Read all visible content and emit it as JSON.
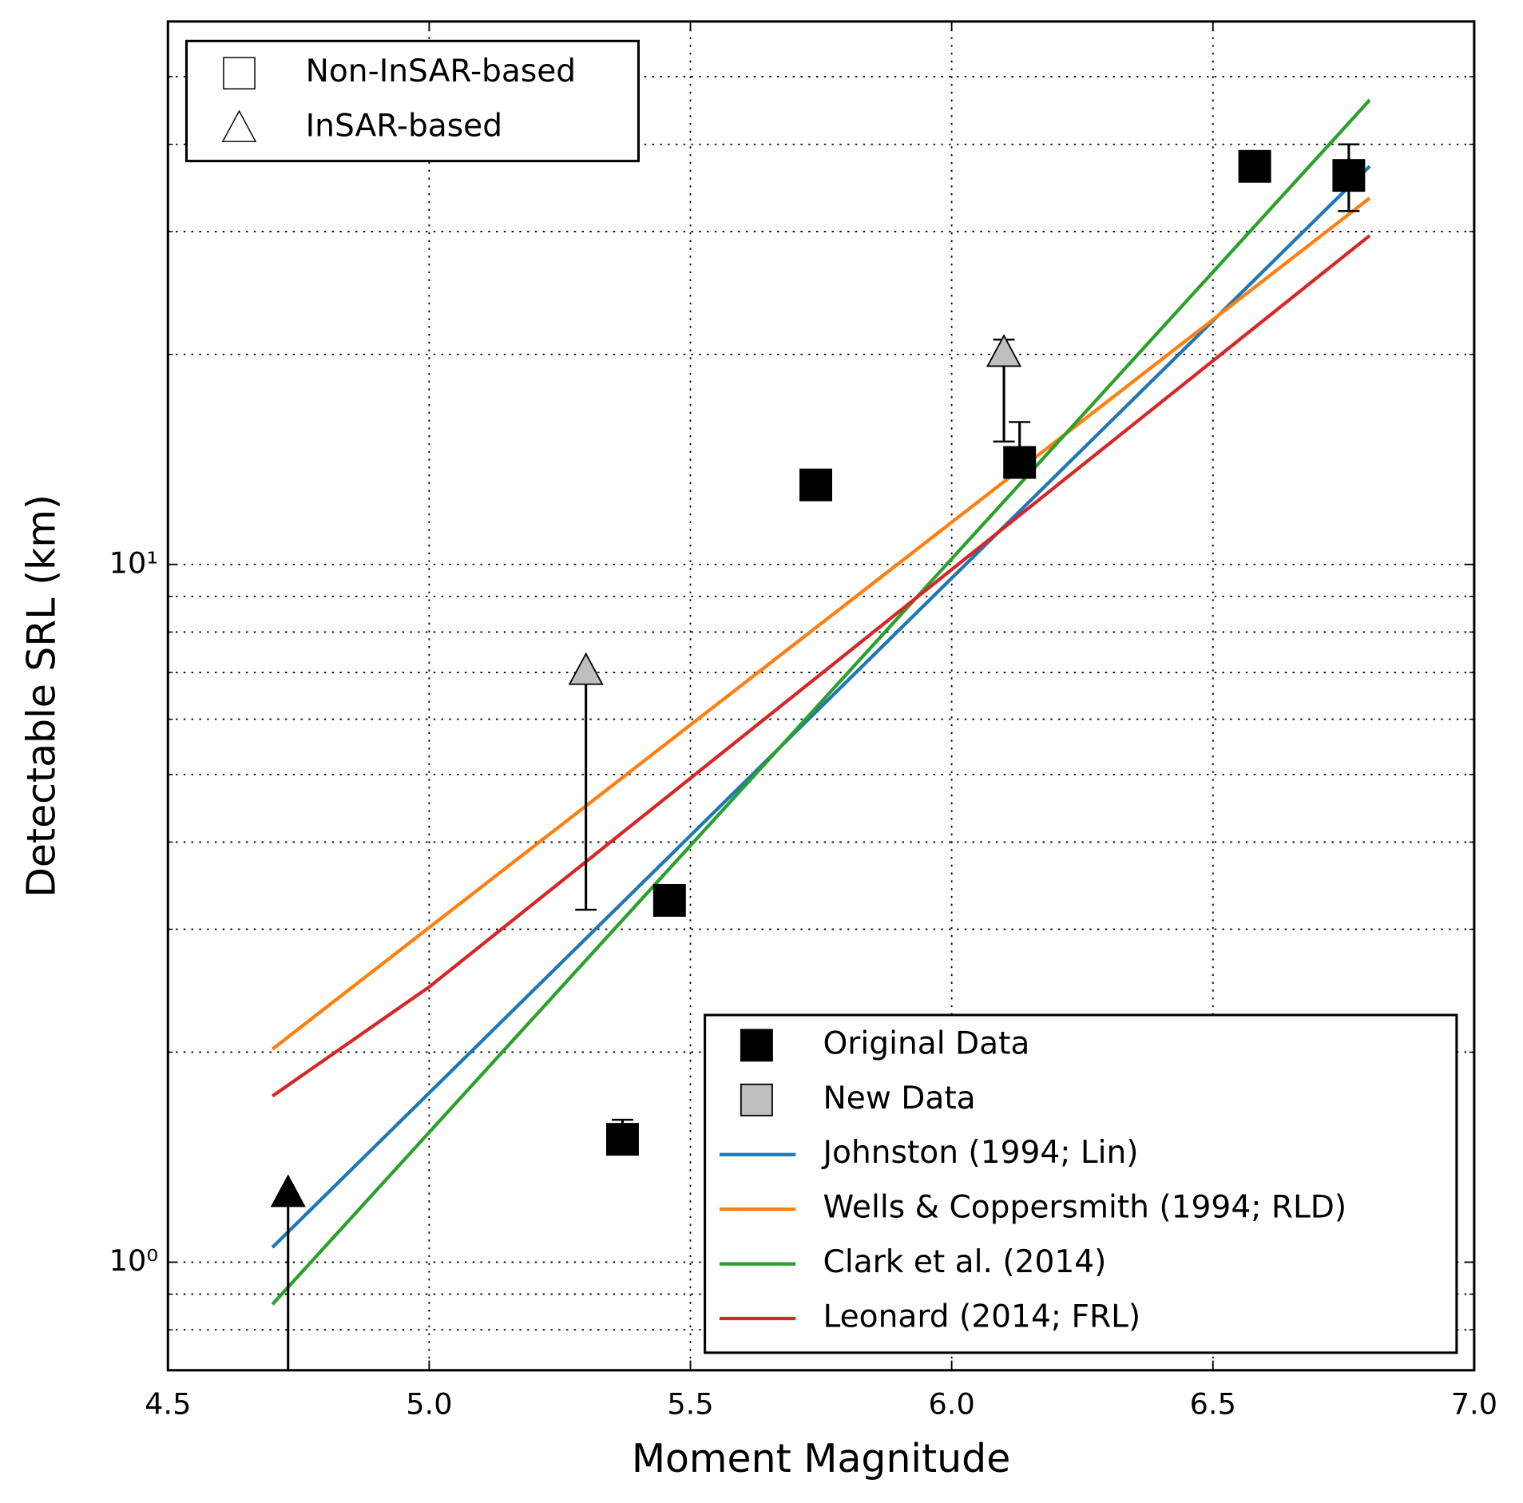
{
  "chart_data": {
    "type": "scatter",
    "xlabel": "Moment Magnitude",
    "ylabel": "Detectable SRL (km)",
    "xlim": [
      4.5,
      7.0
    ],
    "xticks": [
      4.5,
      {
        "value": 5,
        "label": "5.0"
      },
      5.5,
      {
        "value": 6,
        "label": "6.0"
      },
      6.5,
      {
        "value": 7,
        "label": "7.0"
      }
    ],
    "ylim": [
      0.7,
      60
    ],
    "ylog": true,
    "yticks": [
      {
        "value": 1,
        "label": "10⁰"
      },
      {
        "value": 10,
        "label": "10¹"
      }
    ],
    "yminor": [
      0.8,
      0.9,
      2,
      3,
      4,
      5,
      6,
      7,
      8,
      9,
      20,
      30,
      40,
      50
    ],
    "grid": true,
    "marker_legend": [
      {
        "label": "Non-InSAR-based",
        "marker": "square"
      },
      {
        "label": "InSAR-based",
        "marker": "triangle"
      }
    ],
    "points": [
      {
        "name": "Original Data",
        "color": "#000000",
        "x": [
          5.37,
          5.46,
          5.74,
          6.13,
          6.58,
          6.76,
          4.73
        ],
        "values": [
          1.5,
          3.3,
          13,
          14,
          37.2,
          36.1,
          1.25
        ],
        "markers": [
          "square",
          "square",
          "square",
          "square",
          "square",
          "square",
          "triangle"
        ],
        "lower": [
          null,
          null,
          null,
          null,
          null,
          32.1,
          0.5
        ],
        "upper": [
          1.6,
          null,
          null,
          16,
          null,
          40,
          null
        ]
      },
      {
        "name": "New Data",
        "color": "#bfbfbf",
        "x": [
          5.3,
          6.1
        ],
        "values": [
          7.0,
          20.0
        ],
        "markers": [
          "triangle",
          "triangle"
        ],
        "lower": [
          3.2,
          15
        ],
        "upper": [
          null,
          21
        ]
      }
    ],
    "series": [
      {
        "name": "Johnston (1994; Lin)",
        "color": "#1f77b4",
        "x": [
          4.7,
          6.8
        ],
        "values": [
          1.05,
          37.2
        ]
      },
      {
        "name": "Wells & Coppersmith (1994; RLD)",
        "color": "#ff7f0e",
        "x": [
          4.7,
          6.8
        ],
        "values": [
          2.02,
          33.5
        ]
      },
      {
        "name": "Clark et al. (2014)",
        "color": "#2ca02c",
        "x": [
          4.7,
          6.8
        ],
        "values": [
          0.87,
          46.3
        ]
      },
      {
        "name": "Leonard (2014; FRL)",
        "color": "#d62728",
        "x": [
          4.7,
          5.0,
          6.8
        ],
        "values": [
          1.73,
          2.48,
          29.6
        ]
      }
    ]
  }
}
